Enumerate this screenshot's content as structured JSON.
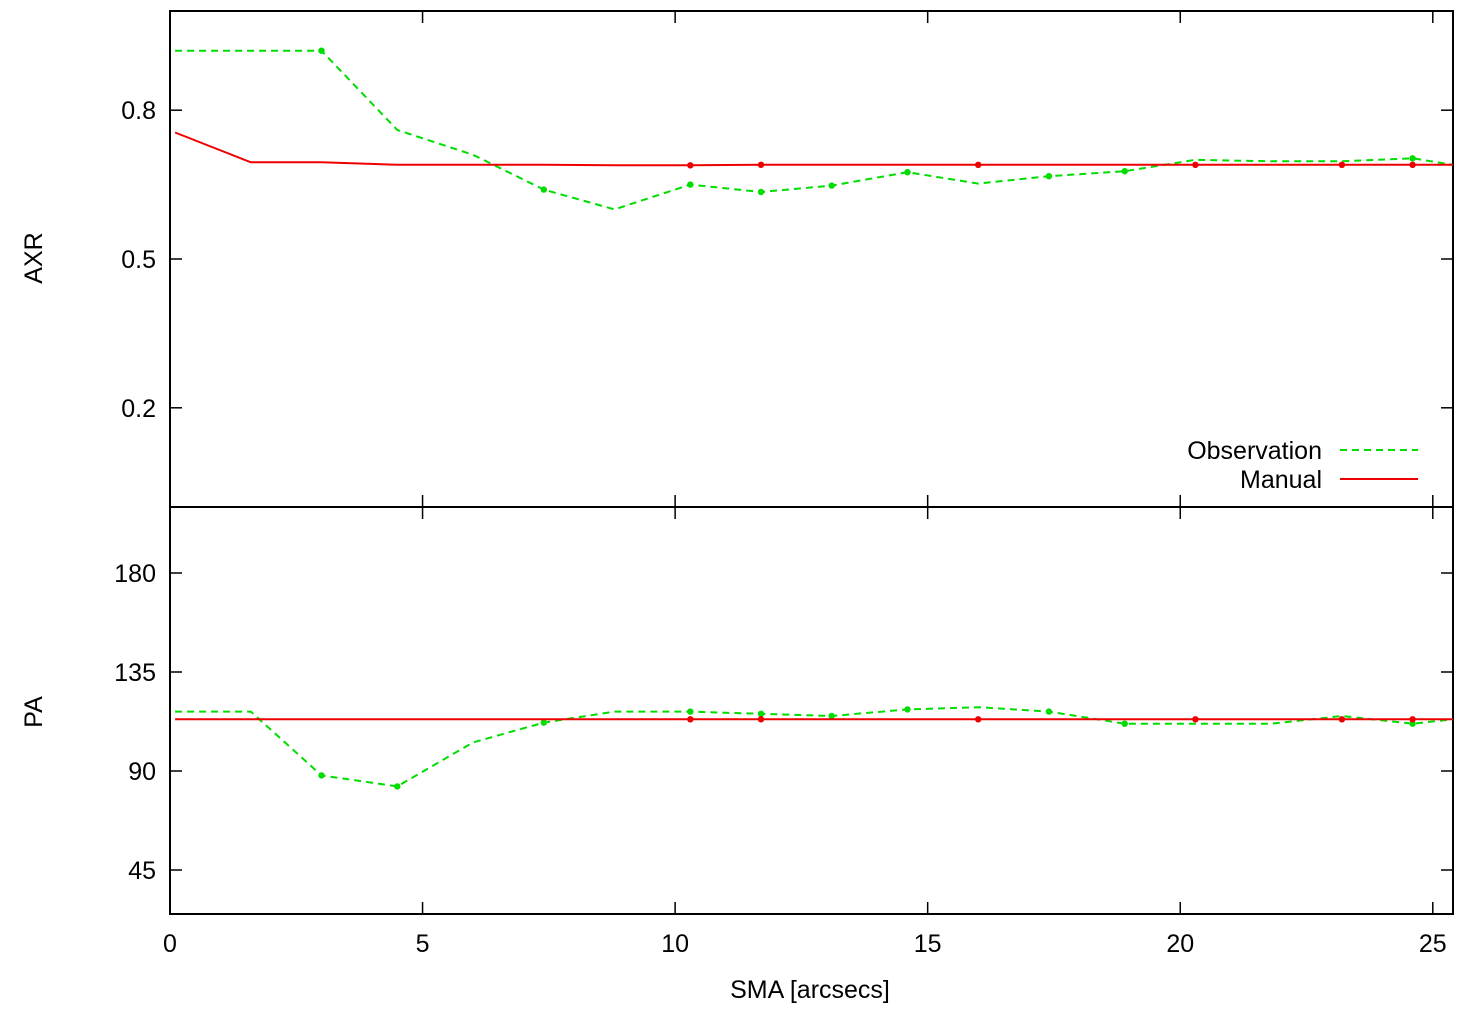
{
  "chart_data": [
    {
      "type": "line",
      "panel": "top",
      "title": "",
      "xlabel": "SMA [arcsecs]",
      "ylabel": "AXR",
      "xlim": [
        0,
        25.4
      ],
      "ylim": [
        0,
        1.0
      ],
      "x_ticks": [
        0,
        5,
        10,
        15,
        20,
        25
      ],
      "y_ticks": [
        0.2,
        0.5,
        0.8
      ],
      "y_tick_labels": [
        "0.2",
        "0.5",
        "0.8"
      ],
      "legend_position": "bottom-right",
      "grid": false,
      "series": [
        {
          "name": "Observation",
          "color": "#00dd00",
          "style": "dashed",
          "x": [
            0.1,
            1.6,
            3.0,
            4.5,
            6.0,
            7.4,
            8.8,
            10.3,
            11.7,
            13.1,
            14.6,
            16.0,
            17.4,
            18.9,
            20.3,
            21.8,
            23.2,
            24.6,
            25.4
          ],
          "y": [
            0.92,
            0.92,
            0.92,
            0.76,
            0.71,
            0.64,
            0.6,
            0.65,
            0.635,
            0.648,
            0.675,
            0.652,
            0.667,
            0.677,
            0.7,
            0.697,
            0.697,
            0.703,
            0.69
          ],
          "markers_at": [
            3.0,
            7.4,
            10.3,
            11.7,
            13.1,
            14.6,
            17.4,
            18.9,
            24.6
          ]
        },
        {
          "name": "Manual",
          "color": "#ee0000",
          "style": "solid",
          "x": [
            0.1,
            1.6,
            3.0,
            4.5,
            6.0,
            7.4,
            8.8,
            10.3,
            11.7,
            13.1,
            14.6,
            16.0,
            17.4,
            18.9,
            20.3,
            21.8,
            23.2,
            24.6,
            25.4
          ],
          "y": [
            0.755,
            0.695,
            0.695,
            0.69,
            0.69,
            0.69,
            0.689,
            0.689,
            0.69,
            0.69,
            0.69,
            0.69,
            0.69,
            0.69,
            0.69,
            0.69,
            0.69,
            0.69,
            0.69
          ],
          "markers_at": [
            10.3,
            11.7,
            16.0,
            20.3,
            23.2,
            24.6
          ]
        }
      ]
    },
    {
      "type": "line",
      "panel": "bottom",
      "title": "",
      "xlabel": "SMA [arcsecs]",
      "ylabel": "PA",
      "xlim": [
        0,
        25.4
      ],
      "ylim": [
        25,
        210
      ],
      "x_ticks": [
        0,
        5,
        10,
        15,
        20,
        25
      ],
      "x_tick_labels": [
        "0",
        "5",
        "10",
        "15",
        "20",
        "25"
      ],
      "y_ticks": [
        45,
        90,
        135,
        180
      ],
      "y_tick_labels": [
        "45",
        "90",
        "135",
        "180"
      ],
      "grid": false,
      "series": [
        {
          "name": "Observation",
          "color": "#00dd00",
          "style": "dashed",
          "x": [
            0.1,
            1.6,
            3.0,
            4.5,
            6.0,
            7.4,
            8.8,
            10.3,
            11.7,
            13.1,
            14.6,
            16.0,
            17.4,
            18.9,
            20.3,
            21.8,
            23.2,
            24.6,
            25.4
          ],
          "y": [
            117,
            117,
            88,
            83,
            103,
            112,
            117,
            117,
            116,
            115,
            118,
            119,
            117,
            111.5,
            111.5,
            111.5,
            115,
            111.5,
            113.5
          ],
          "markers_at": [
            3.0,
            4.5,
            7.4,
            10.3,
            11.7,
            13.1,
            14.6,
            17.4,
            18.9,
            24.6
          ]
        },
        {
          "name": "Manual",
          "color": "#ee0000",
          "style": "solid",
          "x": [
            0.1,
            25.4
          ],
          "y": [
            113.5,
            113.5
          ],
          "markers_at": [
            10.3,
            11.7,
            16.0,
            20.3,
            23.2,
            24.6
          ]
        }
      ]
    }
  ]
}
